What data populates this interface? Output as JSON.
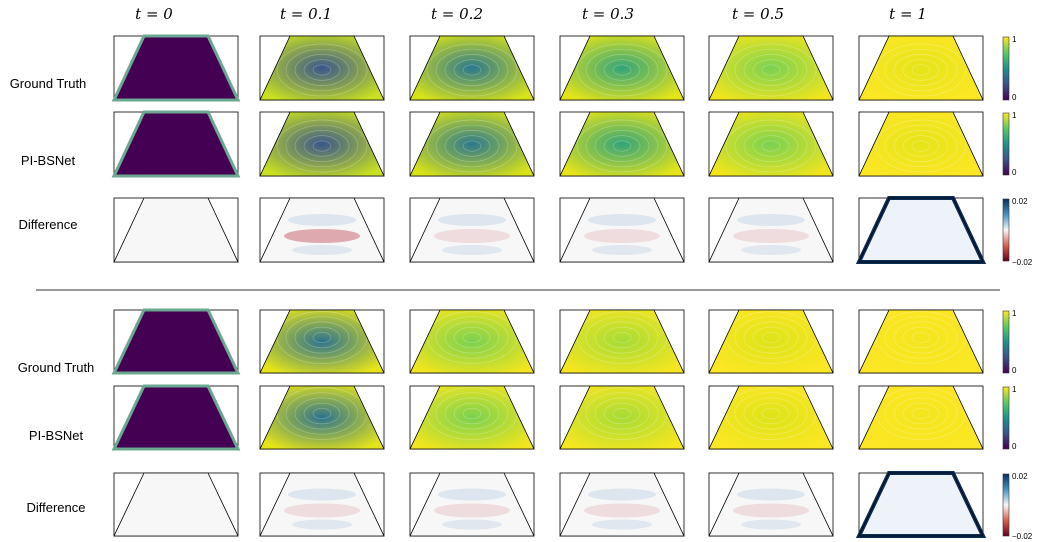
{
  "column_headers": [
    "t = 0",
    "t = 0.1",
    "t = 0.2",
    "t = 0.3",
    "t = 0.5",
    "t = 1"
  ],
  "blocks": [
    {
      "row_labels": [
        "Ground Truth",
        "PI-BSNet",
        "Difference"
      ]
    },
    {
      "row_labels": [
        "Ground Truth",
        "PI-BSNet",
        "Difference"
      ]
    }
  ],
  "colorbars": {
    "field": {
      "max_label": "1",
      "min_label": "0"
    },
    "difference": {
      "max_label": "0.02",
      "min_label": "−0.02"
    }
  },
  "colors": {
    "viridis_dark": "#440154",
    "viridis_mid": "#21918c",
    "viridis_light": "#fde725",
    "diff_pos": "#2166ac",
    "diff_neg": "#b2182b",
    "diff_zero": "#f7f7f7"
  }
}
